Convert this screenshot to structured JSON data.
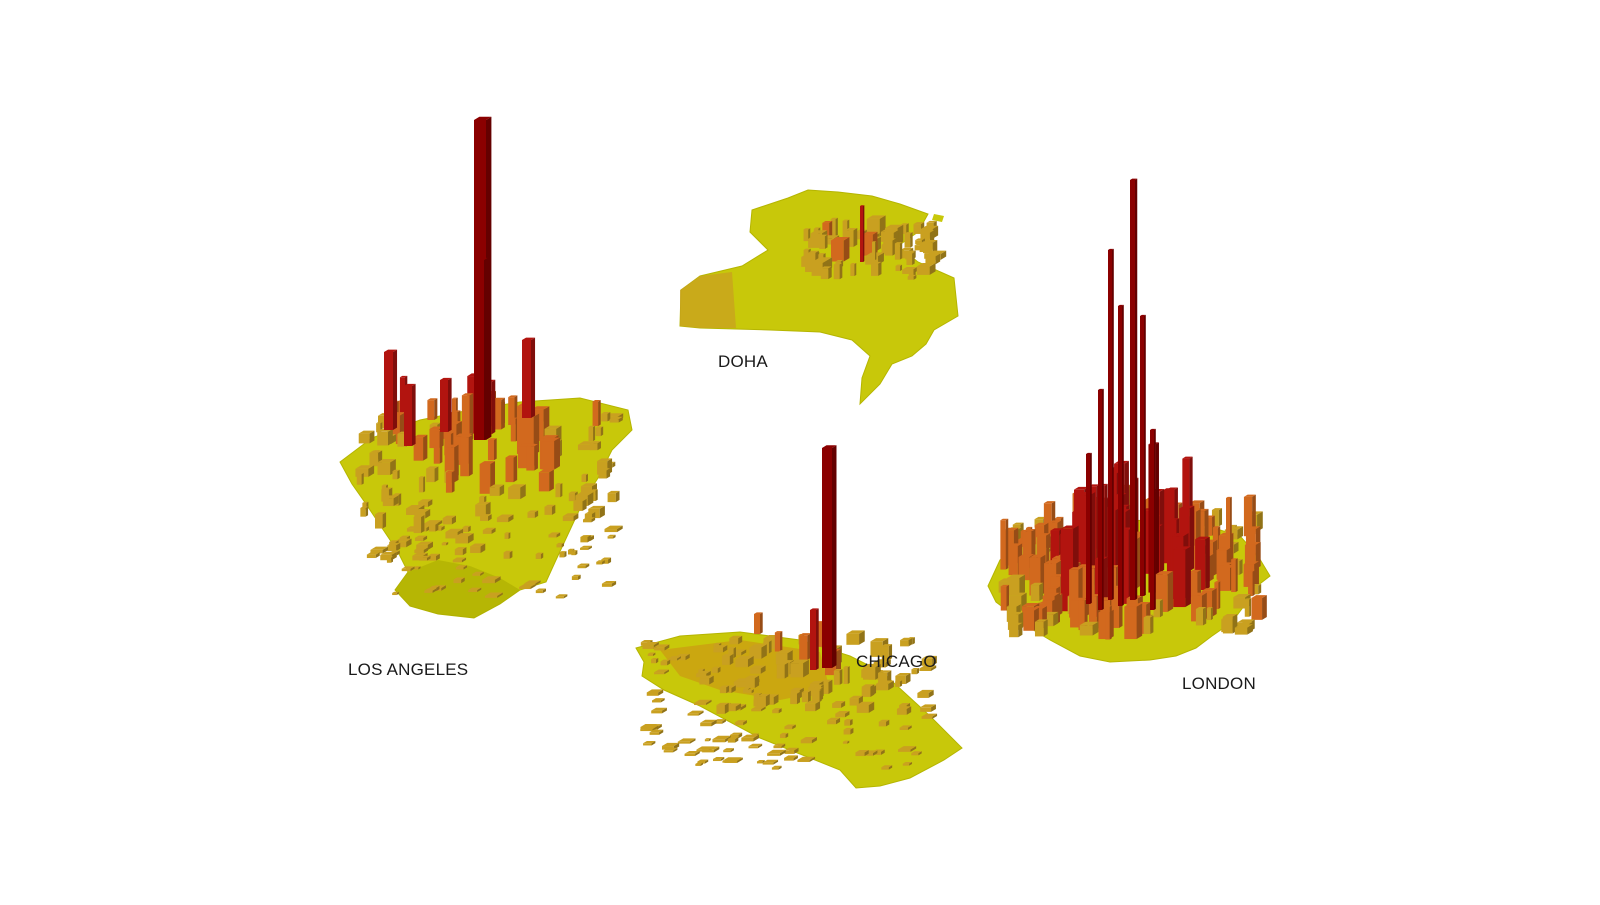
{
  "figure": {
    "colors": {
      "base": "#c8c80a",
      "base_dark": "#9e9e00",
      "low": "#c9a020",
      "mid": "#d2691e",
      "high": "#b2140f",
      "peak": "#8b0000"
    },
    "cities": [
      {
        "id": "los-angeles",
        "label": "LOS ANGELES"
      },
      {
        "id": "doha",
        "label": "DOHA"
      },
      {
        "id": "chicago",
        "label": "CHICAGO"
      },
      {
        "id": "london",
        "label": "LONDON"
      }
    ]
  }
}
